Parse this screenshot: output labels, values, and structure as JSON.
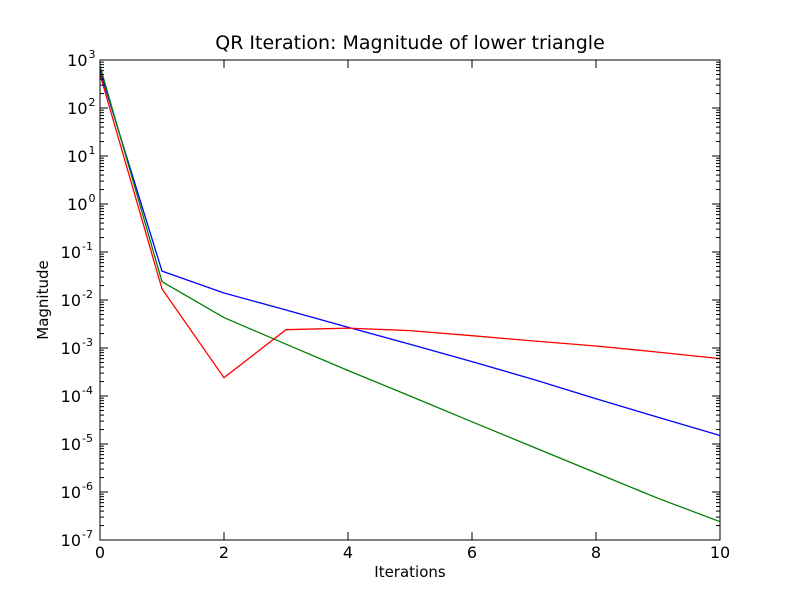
{
  "chart_data": {
    "type": "line",
    "title": "QR Iteration: Magnitude of lower triangle",
    "xlabel": "Iterations",
    "ylabel": "Magnitude",
    "xlim": [
      0,
      10
    ],
    "ylim": [
      1e-07,
      1000
    ],
    "yscale": "log",
    "grid": false,
    "x_ticks": [
      "0",
      "2",
      "4",
      "6",
      "8",
      "10"
    ],
    "y_ticks": [
      {
        "base": "10",
        "exp": "3"
      },
      {
        "base": "10",
        "exp": "2"
      },
      {
        "base": "10",
        "exp": "1"
      },
      {
        "base": "10",
        "exp": "0"
      },
      {
        "base": "10",
        "exp": "-1"
      },
      {
        "base": "10",
        "exp": "-2"
      },
      {
        "base": "10",
        "exp": "-3"
      },
      {
        "base": "10",
        "exp": "-4"
      },
      {
        "base": "10",
        "exp": "-5"
      },
      {
        "base": "10",
        "exp": "-6"
      },
      {
        "base": "10",
        "exp": "-7"
      }
    ],
    "series": [
      {
        "color": "#0000ff",
        "x": [
          0,
          1,
          2,
          3,
          4,
          5,
          6,
          7,
          8,
          9,
          10
        ],
        "y": [
          600,
          0.04,
          0.014,
          0.0062,
          0.0027,
          0.0012,
          0.00052,
          0.00022,
          8.8e-05,
          3.6e-05,
          1.5e-05
        ]
      },
      {
        "color": "#008000",
        "x": [
          0,
          1,
          2,
          3,
          4,
          5,
          6,
          7,
          8,
          9,
          10
        ],
        "y": [
          750,
          0.024,
          0.0043,
          0.0012,
          0.00034,
          0.0001,
          2.9e-05,
          8.5e-06,
          2.5e-06,
          7.4e-07,
          2.4e-07
        ]
      },
      {
        "color": "#ff0000",
        "x": [
          0,
          1,
          2,
          3,
          4,
          5,
          6,
          7,
          8,
          9,
          10
        ],
        "y": [
          500,
          0.017,
          0.00024,
          0.0024,
          0.0026,
          0.0023,
          0.0018,
          0.0014,
          0.0011,
          0.00082,
          0.0006
        ]
      }
    ]
  }
}
